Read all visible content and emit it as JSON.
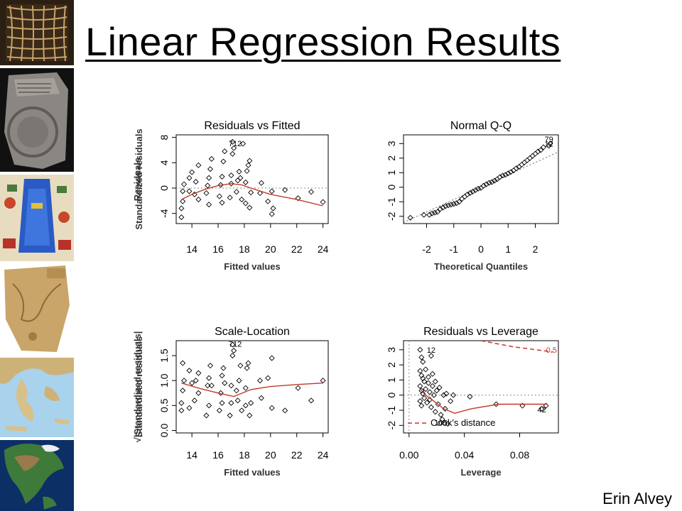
{
  "slide": {
    "title": "Linear Regression Results",
    "author": "Erin Alvey",
    "thumbnails": [
      "grid-map-image",
      "clay-tablet-map-image",
      "illuminated-map-image",
      "parchment-map-image",
      "greece-relief-map-image",
      "north-america-globe-image"
    ]
  },
  "chart_data": [
    {
      "type": "scatter",
      "title": "Residuals vs Fitted",
      "xlabel": "Fitted values",
      "ylabel": "Residuals",
      "xticks": [
        14,
        16,
        18,
        20,
        22,
        24
      ],
      "yticks": [
        -4,
        0,
        4,
        8
      ],
      "xlim": [
        12.8,
        24.4
      ],
      "ylim": [
        -5.6,
        8.4
      ],
      "grid": false,
      "reference_line": {
        "y": 0,
        "style": "dotted"
      },
      "annotations": [
        {
          "text": "712",
          "x": 17.3,
          "y": 6.6
        }
      ],
      "points": [
        [
          13.2,
          -4.6
        ],
        [
          13.2,
          -3.2
        ],
        [
          13.3,
          -2.1
        ],
        [
          13.3,
          -0.5
        ],
        [
          13.4,
          0.6
        ],
        [
          13.8,
          -0.5
        ],
        [
          13.8,
          1.6
        ],
        [
          14.0,
          2.5
        ],
        [
          14.2,
          -1.0
        ],
        [
          14.3,
          1.0
        ],
        [
          14.5,
          -1.8
        ],
        [
          14.5,
          3.6
        ],
        [
          15.1,
          -0.8
        ],
        [
          15.2,
          0.4
        ],
        [
          15.3,
          1.6
        ],
        [
          15.3,
          -2.6
        ],
        [
          15.4,
          3.0
        ],
        [
          15.5,
          4.6
        ],
        [
          16.1,
          -1.3
        ],
        [
          16.2,
          0.5
        ],
        [
          16.3,
          1.8
        ],
        [
          16.3,
          -2.3
        ],
        [
          16.4,
          4.2
        ],
        [
          16.5,
          5.8
        ],
        [
          16.9,
          -1.5
        ],
        [
          17.0,
          0.7
        ],
        [
          17.0,
          2.0
        ],
        [
          17.1,
          7.3
        ],
        [
          17.1,
          5.4
        ],
        [
          17.2,
          6.3
        ],
        [
          17.4,
          -0.6
        ],
        [
          17.5,
          1.2
        ],
        [
          17.6,
          2.6
        ],
        [
          17.7,
          1.6
        ],
        [
          17.8,
          -1.8
        ],
        [
          17.9,
          7.0
        ],
        [
          18.1,
          -2.4
        ],
        [
          18.1,
          0.9
        ],
        [
          18.2,
          2.7
        ],
        [
          18.3,
          3.6
        ],
        [
          18.4,
          4.3
        ],
        [
          18.5,
          -0.7
        ],
        [
          18.4,
          -3.1
        ],
        [
          19.2,
          -0.8
        ],
        [
          19.3,
          0.8
        ],
        [
          19.8,
          -2.1
        ],
        [
          20.1,
          -0.5
        ],
        [
          20.1,
          -4.1
        ],
        [
          20.2,
          -3.2
        ],
        [
          21.1,
          -0.3
        ],
        [
          22.1,
          -1.6
        ],
        [
          23.1,
          -0.6
        ],
        [
          24.0,
          -2.2
        ]
      ],
      "lowess": [
        [
          13.2,
          -1.8
        ],
        [
          14.0,
          -1.0
        ],
        [
          15.0,
          -0.2
        ],
        [
          16.0,
          0.4
        ],
        [
          17.0,
          0.7
        ],
        [
          17.8,
          0.5
        ],
        [
          18.5,
          0.0
        ],
        [
          20.0,
          -1.0
        ],
        [
          22.0,
          -1.8
        ],
        [
          24.0,
          -2.8
        ]
      ]
    },
    {
      "type": "scatter",
      "title": "Normal Q-Q",
      "xlabel": "Theoretical Quantiles",
      "ylabel": "Standardized residuals",
      "xticks": [
        -2,
        -1,
        0,
        1,
        2
      ],
      "yticks": [
        -2,
        -1,
        0,
        1,
        2,
        3
      ],
      "xlim": [
        -2.85,
        2.85
      ],
      "ylim": [
        -2.5,
        3.6
      ],
      "grid": false,
      "reference_line": {
        "slope": 0.85,
        "intercept": 0,
        "style": "dotted"
      },
      "annotations": [
        {
          "text": "79",
          "x": 2.5,
          "y": 3.1
        },
        {
          "text": "12",
          "x": 2.5,
          "y": 2.8
        }
      ],
      "points": [
        [
          -2.6,
          -2.1
        ],
        [
          -2.1,
          -1.9
        ],
        [
          -1.9,
          -1.9
        ],
        [
          -1.8,
          -1.8
        ],
        [
          -1.7,
          -1.75
        ],
        [
          -1.6,
          -1.7
        ],
        [
          -1.5,
          -1.5
        ],
        [
          -1.4,
          -1.4
        ],
        [
          -1.3,
          -1.3
        ],
        [
          -1.2,
          -1.25
        ],
        [
          -1.1,
          -1.2
        ],
        [
          -1.0,
          -1.15
        ],
        [
          -0.9,
          -1.1
        ],
        [
          -0.8,
          -1.0
        ],
        [
          -0.7,
          -0.8
        ],
        [
          -0.6,
          -0.65
        ],
        [
          -0.5,
          -0.5
        ],
        [
          -0.4,
          -0.4
        ],
        [
          -0.3,
          -0.3
        ],
        [
          -0.2,
          -0.2
        ],
        [
          -0.1,
          -0.1
        ],
        [
          0.0,
          -0.05
        ],
        [
          0.1,
          0.1
        ],
        [
          0.2,
          0.2
        ],
        [
          0.3,
          0.3
        ],
        [
          0.4,
          0.35
        ],
        [
          0.5,
          0.45
        ],
        [
          0.6,
          0.55
        ],
        [
          0.7,
          0.7
        ],
        [
          0.8,
          0.8
        ],
        [
          0.9,
          0.85
        ],
        [
          1.0,
          0.95
        ],
        [
          1.1,
          1.05
        ],
        [
          1.2,
          1.15
        ],
        [
          1.3,
          1.3
        ],
        [
          1.4,
          1.4
        ],
        [
          1.5,
          1.55
        ],
        [
          1.6,
          1.7
        ],
        [
          1.7,
          1.85
        ],
        [
          1.8,
          2.0
        ],
        [
          1.9,
          2.15
        ],
        [
          2.0,
          2.3
        ],
        [
          2.1,
          2.45
        ],
        [
          2.2,
          2.55
        ],
        [
          2.3,
          2.75
        ],
        [
          2.5,
          2.85
        ],
        [
          2.55,
          3.0
        ]
      ]
    },
    {
      "type": "scatter",
      "title": "Scale-Location",
      "xlabel": "Fitted values",
      "ylabel": "√|Standardized residuals|",
      "xticks": [
        14,
        16,
        18,
        20,
        22,
        24
      ],
      "yticks": [
        0.0,
        0.5,
        1.0,
        1.5
      ],
      "xlim": [
        12.8,
        24.4
      ],
      "ylim": [
        -0.05,
        1.8
      ],
      "grid": false,
      "annotations": [
        {
          "text": "712",
          "x": 17.3,
          "y": 1.68
        }
      ],
      "points": [
        [
          13.2,
          0.4
        ],
        [
          13.2,
          0.55
        ],
        [
          13.3,
          1.35
        ],
        [
          13.3,
          0.8
        ],
        [
          13.4,
          1.0
        ],
        [
          13.8,
          0.45
        ],
        [
          13.8,
          1.2
        ],
        [
          14.0,
          0.95
        ],
        [
          14.2,
          0.6
        ],
        [
          14.3,
          1.0
        ],
        [
          14.5,
          0.75
        ],
        [
          14.5,
          1.15
        ],
        [
          15.1,
          0.3
        ],
        [
          15.2,
          0.9
        ],
        [
          15.3,
          1.05
        ],
        [
          15.3,
          0.5
        ],
        [
          15.4,
          1.3
        ],
        [
          15.5,
          0.9
        ],
        [
          16.1,
          0.4
        ],
        [
          16.2,
          0.75
        ],
        [
          16.3,
          1.1
        ],
        [
          16.3,
          0.55
        ],
        [
          16.4,
          1.25
        ],
        [
          16.5,
          0.95
        ],
        [
          16.9,
          0.3
        ],
        [
          17.0,
          0.55
        ],
        [
          17.0,
          0.9
        ],
        [
          17.1,
          1.72
        ],
        [
          17.1,
          1.5
        ],
        [
          17.2,
          1.6
        ],
        [
          17.4,
          0.8
        ],
        [
          17.5,
          0.6
        ],
        [
          17.6,
          1.0
        ],
        [
          17.7,
          1.3
        ],
        [
          17.8,
          0.4
        ],
        [
          18.1,
          0.5
        ],
        [
          18.1,
          0.85
        ],
        [
          18.2,
          1.25
        ],
        [
          18.3,
          1.35
        ],
        [
          18.4,
          0.3
        ],
        [
          18.5,
          0.55
        ],
        [
          19.2,
          1.0
        ],
        [
          19.3,
          0.65
        ],
        [
          19.8,
          1.05
        ],
        [
          20.1,
          0.45
        ],
        [
          20.1,
          1.45
        ],
        [
          21.1,
          0.4
        ],
        [
          22.1,
          0.85
        ],
        [
          23.1,
          0.6
        ],
        [
          24.0,
          1.0
        ]
      ],
      "lowess": [
        [
          13.2,
          0.95
        ],
        [
          14.5,
          0.85
        ],
        [
          16.0,
          0.75
        ],
        [
          17.2,
          0.68
        ],
        [
          18.5,
          0.82
        ],
        [
          20.0,
          0.88
        ],
        [
          22.0,
          0.92
        ],
        [
          24.0,
          0.95
        ]
      ]
    },
    {
      "type": "scatter",
      "title": "Residuals vs Leverage",
      "xlabel": "Leverage",
      "ylabel": "Standardized residuals",
      "xticks": [
        0.0,
        0.04,
        0.08
      ],
      "yticks": [
        -2,
        -1,
        0,
        1,
        2,
        3
      ],
      "xlim": [
        -0.004,
        0.108
      ],
      "ylim": [
        -2.5,
        3.6
      ],
      "grid": false,
      "legend": {
        "label": "Cook's distance",
        "placement": "bottom-left"
      },
      "annotations": [
        {
          "text": "12",
          "x": 0.016,
          "y": 2.8
        },
        {
          "text": "0.5",
          "x": 0.103,
          "y": 2.8
        },
        {
          "text": "42",
          "x": 0.096,
          "y": -1.15
        },
        {
          "text": "105",
          "x": 0.023,
          "y": -2.0
        }
      ],
      "points": [
        [
          0.008,
          3.0
        ],
        [
          0.009,
          2.5
        ],
        [
          0.01,
          2.2
        ],
        [
          0.008,
          1.6
        ],
        [
          0.009,
          1.3
        ],
        [
          0.01,
          1.1
        ],
        [
          0.011,
          0.9
        ],
        [
          0.008,
          0.6
        ],
        [
          0.009,
          0.3
        ],
        [
          0.01,
          0.1
        ],
        [
          0.011,
          -0.2
        ],
        [
          0.008,
          -0.4
        ],
        [
          0.009,
          -0.7
        ],
        [
          0.012,
          1.7
        ],
        [
          0.012,
          0.4
        ],
        [
          0.013,
          -0.5
        ],
        [
          0.014,
          1.2
        ],
        [
          0.014,
          0.8
        ],
        [
          0.015,
          0.2
        ],
        [
          0.015,
          -0.3
        ],
        [
          0.016,
          2.6
        ],
        [
          0.016,
          -0.8
        ],
        [
          0.017,
          1.4
        ],
        [
          0.017,
          0.6
        ],
        [
          0.018,
          0.0
        ],
        [
          0.019,
          -1.1
        ],
        [
          0.019,
          0.9
        ],
        [
          0.02,
          0.3
        ],
        [
          0.021,
          -0.6
        ],
        [
          0.022,
          0.5
        ],
        [
          0.023,
          -1.3
        ],
        [
          0.024,
          -1.6
        ],
        [
          0.025,
          0.0
        ],
        [
          0.026,
          -0.9
        ],
        [
          0.027,
          0.1
        ],
        [
          0.028,
          -1.9
        ],
        [
          0.03,
          -0.4
        ],
        [
          0.032,
          0.0
        ],
        [
          0.044,
          -0.1
        ],
        [
          0.063,
          -0.6
        ],
        [
          0.082,
          -0.7
        ],
        [
          0.096,
          -0.9
        ],
        [
          0.099,
          -0.7
        ]
      ],
      "lowess": [
        [
          0.008,
          0.4
        ],
        [
          0.012,
          0.0
        ],
        [
          0.018,
          -0.4
        ],
        [
          0.025,
          -0.9
        ],
        [
          0.033,
          -1.2
        ],
        [
          0.045,
          -0.9
        ],
        [
          0.065,
          -0.6
        ],
        [
          0.1,
          -0.6
        ]
      ],
      "cooks_line": {
        "label": "0.5",
        "points": [
          [
            0.052,
            3.6
          ],
          [
            0.075,
            3.2
          ],
          [
            0.1,
            2.9
          ],
          [
            0.104,
            2.85
          ]
        ]
      }
    }
  ]
}
